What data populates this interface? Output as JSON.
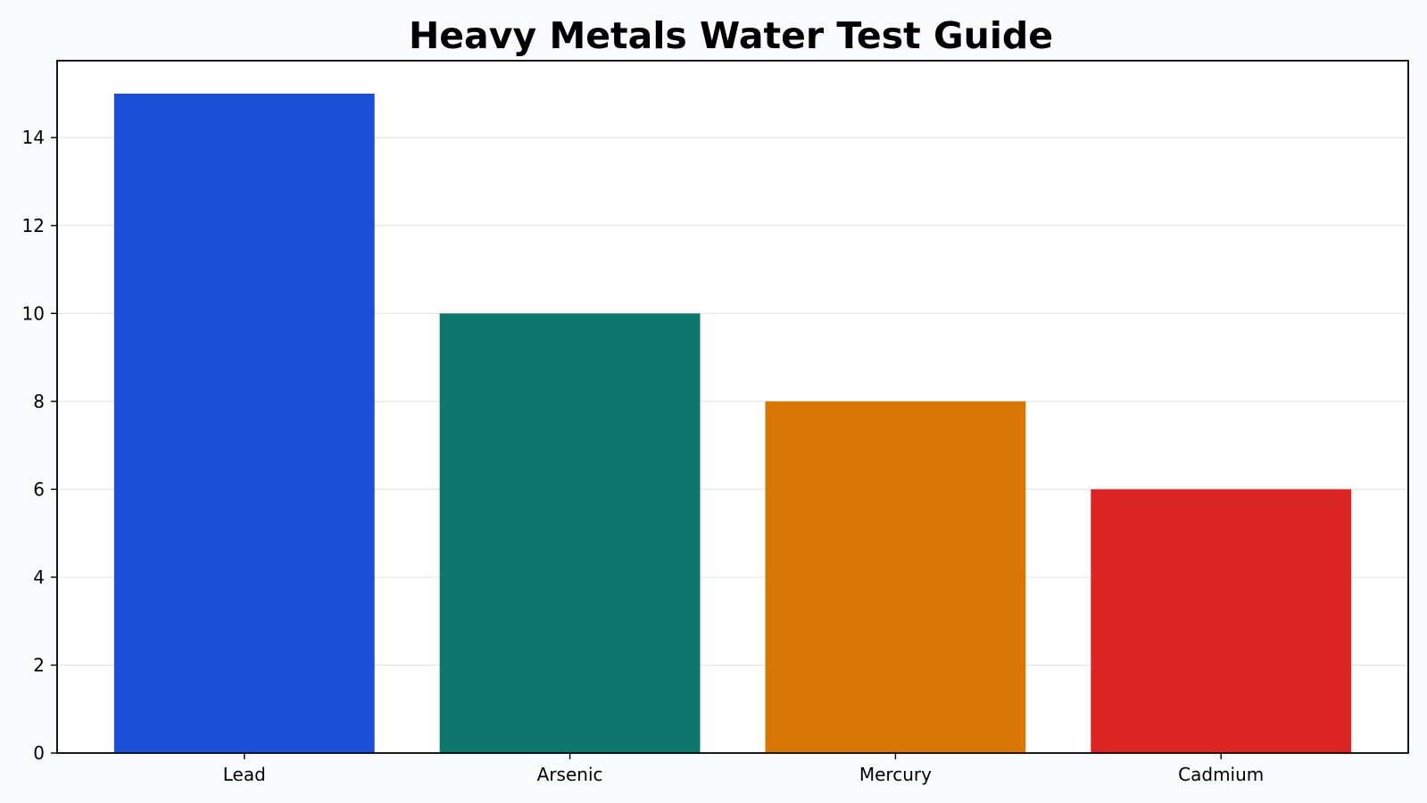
{
  "chart_data": {
    "type": "bar",
    "title": "Heavy Metals Water Test Guide",
    "xlabel": "",
    "ylabel": "",
    "categories": [
      "Lead",
      "Arsenic",
      "Mercury",
      "Cadmium"
    ],
    "values": [
      15,
      10,
      8,
      6
    ],
    "colors": [
      "#1c4fd8",
      "#0f766e",
      "#d97706",
      "#dc2626"
    ],
    "ylim": [
      0,
      15.75
    ],
    "yticks": [
      0,
      2,
      4,
      6,
      8,
      10,
      12,
      14
    ],
    "grid": "y-major",
    "legend": "none",
    "background": "#f8fafc",
    "plot_background": "#ffffff"
  }
}
